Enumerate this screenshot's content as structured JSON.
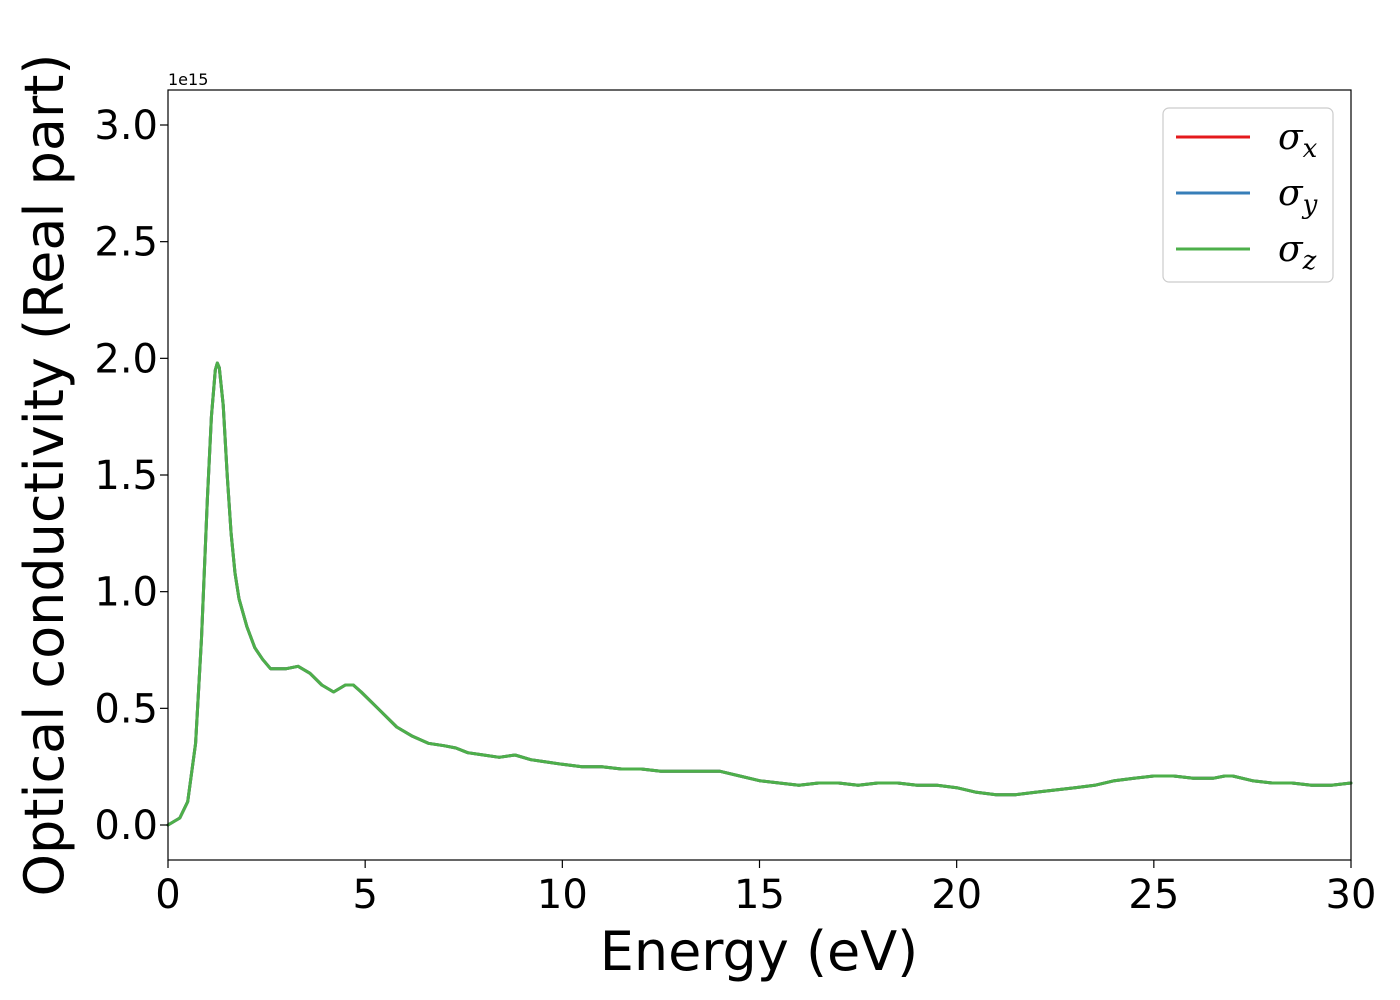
{
  "chart_data": {
    "type": "line",
    "title": "",
    "xlabel": "Energy (eV)",
    "ylabel": "Optical conductivity (Real part)",
    "y_offset_label": "1e15",
    "xlim": [
      0,
      30
    ],
    "ylim": [
      -0.15,
      3.15
    ],
    "x_ticks": [
      0,
      5,
      10,
      15,
      20,
      25,
      30
    ],
    "x_tick_labels": [
      "0",
      "5",
      "10",
      "15",
      "20",
      "25",
      "30"
    ],
    "y_ticks": [
      0.0,
      0.5,
      1.0,
      1.5,
      2.0,
      2.5,
      3.0
    ],
    "y_tick_labels": [
      "0.0",
      "0.5",
      "1.0",
      "1.5",
      "2.0",
      "2.5",
      "3.0"
    ],
    "grid": false,
    "legend_position": "top-right",
    "x": [
      0,
      0.3,
      0.5,
      0.7,
      0.85,
      1.0,
      1.1,
      1.2,
      1.25,
      1.3,
      1.4,
      1.5,
      1.6,
      1.7,
      1.8,
      2.0,
      2.2,
      2.4,
      2.6,
      2.8,
      3.0,
      3.3,
      3.6,
      3.9,
      4.2,
      4.5,
      4.7,
      4.9,
      5.2,
      5.5,
      5.8,
      6.2,
      6.6,
      7.0,
      7.3,
      7.6,
      8.0,
      8.4,
      8.8,
      9.2,
      9.6,
      10.0,
      10.5,
      11.0,
      11.5,
      12.0,
      12.5,
      13.0,
      13.5,
      14.0,
      14.5,
      15.0,
      15.5,
      16.0,
      16.5,
      17.0,
      17.5,
      18.0,
      18.5,
      19.0,
      19.5,
      20.0,
      20.5,
      21.0,
      21.5,
      22.0,
      22.5,
      23.0,
      23.5,
      24.0,
      24.5,
      25.0,
      25.5,
      26.0,
      26.5,
      26.8,
      27.0,
      27.5,
      28.0,
      28.5,
      29.0,
      29.5,
      30.0
    ],
    "series": [
      {
        "name": "σ",
        "subscript": "x",
        "color": "#e41a1c",
        "y": [
          0.0,
          0.03,
          0.1,
          0.35,
          0.8,
          1.4,
          1.75,
          1.95,
          1.98,
          1.96,
          1.8,
          1.5,
          1.25,
          1.08,
          0.97,
          0.85,
          0.76,
          0.71,
          0.67,
          0.67,
          0.67,
          0.68,
          0.65,
          0.6,
          0.57,
          0.6,
          0.6,
          0.57,
          0.52,
          0.47,
          0.42,
          0.38,
          0.35,
          0.34,
          0.33,
          0.31,
          0.3,
          0.29,
          0.3,
          0.28,
          0.27,
          0.26,
          0.25,
          0.25,
          0.24,
          0.24,
          0.23,
          0.23,
          0.23,
          0.23,
          0.21,
          0.19,
          0.18,
          0.17,
          0.18,
          0.18,
          0.17,
          0.18,
          0.18,
          0.17,
          0.17,
          0.16,
          0.14,
          0.13,
          0.13,
          0.14,
          0.15,
          0.16,
          0.17,
          0.19,
          0.2,
          0.21,
          0.21,
          0.2,
          0.2,
          0.21,
          0.21,
          0.19,
          0.18,
          0.18,
          0.17,
          0.17,
          0.18
        ]
      },
      {
        "name": "σ",
        "subscript": "y",
        "color": "#377eb8",
        "y": [
          0.0,
          0.03,
          0.1,
          0.35,
          0.8,
          1.4,
          1.75,
          1.95,
          1.98,
          1.96,
          1.8,
          1.5,
          1.25,
          1.08,
          0.97,
          0.85,
          0.76,
          0.71,
          0.67,
          0.67,
          0.67,
          0.68,
          0.65,
          0.6,
          0.57,
          0.6,
          0.6,
          0.57,
          0.52,
          0.47,
          0.42,
          0.38,
          0.35,
          0.34,
          0.33,
          0.31,
          0.3,
          0.29,
          0.3,
          0.28,
          0.27,
          0.26,
          0.25,
          0.25,
          0.24,
          0.24,
          0.23,
          0.23,
          0.23,
          0.23,
          0.21,
          0.19,
          0.18,
          0.17,
          0.18,
          0.18,
          0.17,
          0.18,
          0.18,
          0.17,
          0.17,
          0.16,
          0.14,
          0.13,
          0.13,
          0.14,
          0.15,
          0.16,
          0.17,
          0.19,
          0.2,
          0.21,
          0.21,
          0.2,
          0.2,
          0.21,
          0.21,
          0.19,
          0.18,
          0.18,
          0.17,
          0.17,
          0.18
        ]
      },
      {
        "name": "σ",
        "subscript": "z",
        "color": "#4daf4a",
        "y": [
          0.0,
          0.03,
          0.1,
          0.35,
          0.8,
          1.4,
          1.75,
          1.95,
          1.98,
          1.96,
          1.8,
          1.5,
          1.25,
          1.08,
          0.97,
          0.85,
          0.76,
          0.71,
          0.67,
          0.67,
          0.67,
          0.68,
          0.65,
          0.6,
          0.57,
          0.6,
          0.6,
          0.57,
          0.52,
          0.47,
          0.42,
          0.38,
          0.35,
          0.34,
          0.33,
          0.31,
          0.3,
          0.29,
          0.3,
          0.28,
          0.27,
          0.26,
          0.25,
          0.25,
          0.24,
          0.24,
          0.23,
          0.23,
          0.23,
          0.23,
          0.21,
          0.19,
          0.18,
          0.17,
          0.18,
          0.18,
          0.17,
          0.18,
          0.18,
          0.17,
          0.17,
          0.16,
          0.14,
          0.13,
          0.13,
          0.14,
          0.15,
          0.16,
          0.17,
          0.19,
          0.2,
          0.21,
          0.21,
          0.2,
          0.2,
          0.21,
          0.21,
          0.19,
          0.18,
          0.18,
          0.17,
          0.17,
          0.18
        ]
      }
    ]
  }
}
